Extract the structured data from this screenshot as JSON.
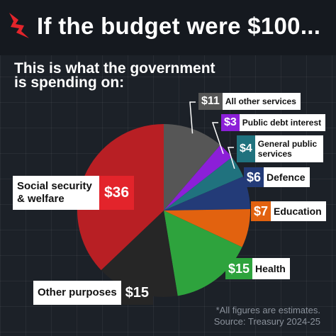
{
  "headline": "If the budget were $100...",
  "subtitle_line1": "This is what the government",
  "subtitle_line2": "is spending on:",
  "footnote_line1": "*All figures are estimates.",
  "footnote_line2": "Source: Treasury 2024-25",
  "logo_icon": "sbs-logo-icon",
  "chart_data": {
    "type": "pie",
    "title": "If the budget were $100...",
    "subtitle": "This is what the government is spending on:",
    "unit": "$",
    "slices": [
      {
        "label": "All other services",
        "value": 11,
        "value_label": "$11",
        "color": "#565656"
      },
      {
        "label": "Public debt interest",
        "value": 3,
        "value_label": "$3",
        "color": "#8c1fd8"
      },
      {
        "label": "General public services",
        "value": 4,
        "value_label": "$4",
        "color": "#20727e"
      },
      {
        "label": "Defence",
        "value": 6,
        "value_label": "$6",
        "color": "#233b78"
      },
      {
        "label": "Education",
        "value": 7,
        "value_label": "$7",
        "color": "#e2620f"
      },
      {
        "label": "Health",
        "value": 15,
        "value_label": "$15",
        "color": "#2ea33d"
      },
      {
        "label": "Other purposes",
        "value": 15,
        "value_label": "$15",
        "color": "#262626"
      },
      {
        "label": "Social security & welfare",
        "value": 36,
        "value_label": "$36",
        "color": "#b81f24"
      }
    ]
  }
}
